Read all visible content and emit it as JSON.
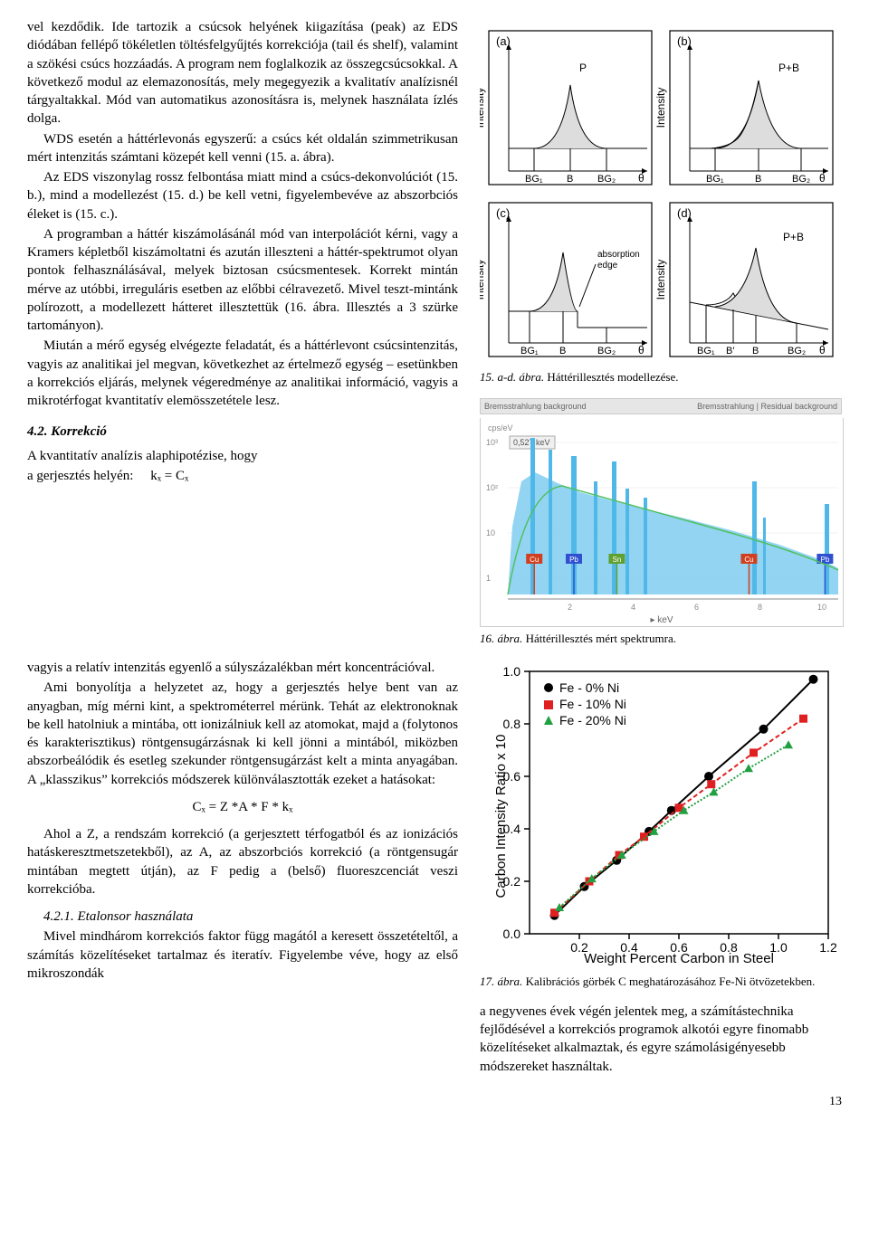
{
  "leftCol": {
    "para1": "vel kezdődik. Ide tartozik a csúcsok helyének kiigazítása (peak) az EDS diódában fellépő tökéletlen töltésfelgyűjtés korrekciója (tail és shelf), valamint a szökési csúcs hozzáadás. A program nem foglalkozik az összegcsúcsokkal. A következő modul az elemazonosítás, mely megegyezik a kvalitatív analízisnél tárgyaltakkal. Mód van automatikus azonosításra is, melynek használata ízlés dolga.",
    "para2": "WDS esetén a háttérlevonás egyszerű: a csúcs két oldalán szimmetrikusan mért intenzitás számtani közepét kell venni (15. a. ábra).",
    "para3": "Az EDS viszonylag rossz felbontása miatt mind a csúcs-dekonvolúciót (15. b.), mind a modellezést (15. d.) be kell vetni, figyelembevéve az abszorbciós éleket is (15. c.).",
    "para4": "A programban a háttér kiszámolásánál mód van interpolációt kérni, vagy a Kramers képletből kiszámoltatni és azután illeszteni a háttér-spektrumot olyan pontok felhasználásával, melyek biztosan csúcsmentesek. Korrekt mintán mérve az utóbbi, irreguláris esetben az előbbi célravezető. Mivel teszt-mintánk polírozott, a modellezett hátteret illesztettük (16. ábra. Illesztés a 3 szürke tartományon).",
    "para5": "Miután a mérő egység elvégezte feladatát, és a háttérlevont csúcsintenzitás, vagyis az analitikai jel megvan, következhet az értelmező egység – esetünkben a korrekciós eljárás, melynek végeredménye az analitikai információ, vagyis a mikrotérfogat kvantitatív elemösszetétele lesz.",
    "h4_2": "4.2. Korrekció",
    "para6": "A kvantitatív analízis alaphipotézise, hogy",
    "eq1_label": "a gerjesztés helyén:",
    "eq1": "kₓ = Cₓ",
    "para7": "vagyis a relatív intenzitás egyenlő a súlyszázalékban mért koncentrációval.",
    "para8": "Ami bonyolítja a helyzetet az, hogy a gerjesztés helye bent van az anyagban, míg mérni kint, a spektrométerrel mérünk. Tehát az elektronoknak be kell hatolniuk a mintába, ott ionizálniuk kell az atomokat, majd a (folytonos és karakterisztikus) röntgensugárzásnak ki kell jönni a mintából, miközben abszorbeálódik és esetleg szekunder röntgensugárzást kelt a minta anyagában. A „klasszikus” korrekciós módszerek különválasztották ezeket a hatásokat:",
    "eq2": "Cₓ = Z *A * F * kₓ",
    "para9": "Ahol a Z, a rendszám korrekció (a gerjesztett térfogatból és az ionizációs hatáskeresztmetszetekből), az A, az abszorbciós korrekció (a röntgensugár mintában megtett útján), az F pedig a (belső) fluoreszcenciát veszi korrekcióba.",
    "h5_1": "4.2.1. Etalonsor használata",
    "para10": "Mivel mindhárom korrekciós faktor függ magától a keresett összetételtől, a számítás közelítéseket tartalmaz és iteratív. Figyelembe véve, hogy az első mikroszondák"
  },
  "rightCol": {
    "cap15_label": "15. a-d. ábra.",
    "cap15_text": "Háttérillesztés modellezése.",
    "specHeaderLeft": "Bremsstrahlung background",
    "specHeaderRight": "Bremsstrahlung | Residual background",
    "specUnit": "cps/eV",
    "specPeak": "0,527 keV",
    "specXlabel": "keV",
    "cap16_label": "16. ábra.",
    "cap16_text": "Háttérillesztés mért spektrumra.",
    "chart17_ylabel": "Carbon Intensity Ratio x 10",
    "chart17_xlabel": "Weight Percent Carbon in Steel",
    "chart17_legend1": "Fe - 0% Ni",
    "chart17_legend2": "Fe - 10% Ni",
    "chart17_legend3": "Fe - 20% Ni",
    "cap17_label": "17. ábra.",
    "cap17_text": "Kalibrációs görbék C meghatározásához Fe-Ni ötvözetekben.",
    "para11": "a negyvenes évek végén jelentek meg, a számítástechnika fejlődésével a korrekciós programok alkotói egyre finomabb közelítéseket alkalmaztak, és egyre számolásigényesebb módszereket használtak."
  },
  "fig15": {
    "labels": {
      "a": "(a)",
      "b": "(b)",
      "c": "(c)",
      "d": "(d)",
      "xaxis": "θ",
      "yaxis": "Intensity",
      "BG1": "BG₁",
      "B": "B",
      "BG2": "BG₂",
      "Bp": "B'",
      "P": "P",
      "PB": "P+B",
      "absorption": "absorption\nedge"
    }
  },
  "fig16": {
    "yticks": [
      "10³",
      "10²",
      "10",
      "1"
    ],
    "xticks": [
      "2",
      "4",
      "6",
      "8",
      "10"
    ],
    "elements": [
      {
        "label": "Cu",
        "x": 0.08,
        "color": "#d04020"
      },
      {
        "label": "Pb",
        "x": 0.2,
        "color": "#3050d0"
      },
      {
        "label": "Sn",
        "x": 0.33,
        "color": "#60a030"
      },
      {
        "label": "Cu",
        "x": 0.73,
        "color": "#d04020"
      },
      {
        "label": "Pb",
        "x": 0.96,
        "color": "#3050d0"
      }
    ]
  },
  "fig17": {
    "xlim": [
      0,
      1.2
    ],
    "ylim": [
      0,
      1.0
    ],
    "xticks": [
      0.2,
      0.4,
      0.6,
      0.8,
      1.0,
      1.2
    ],
    "yticks": [
      0,
      0.2,
      0.4,
      0.6,
      0.8,
      1.0
    ],
    "series": [
      {
        "name": "Fe - 0% Ni",
        "color": "#000000",
        "marker": "circle",
        "dash": "",
        "pts": [
          [
            0.1,
            0.07
          ],
          [
            0.22,
            0.18
          ],
          [
            0.35,
            0.28
          ],
          [
            0.48,
            0.39
          ],
          [
            0.57,
            0.47
          ],
          [
            0.72,
            0.6
          ],
          [
            0.94,
            0.78
          ],
          [
            1.14,
            0.97
          ]
        ]
      },
      {
        "name": "Fe - 10% Ni",
        "color": "#e02020",
        "marker": "square",
        "dash": "5,3",
        "pts": [
          [
            0.1,
            0.08
          ],
          [
            0.24,
            0.2
          ],
          [
            0.36,
            0.3
          ],
          [
            0.46,
            0.37
          ],
          [
            0.6,
            0.48
          ],
          [
            0.73,
            0.57
          ],
          [
            0.9,
            0.69
          ],
          [
            1.1,
            0.82
          ]
        ]
      },
      {
        "name": "Fe - 20% Ni",
        "color": "#20a040",
        "marker": "triangle",
        "dash": "2,2",
        "pts": [
          [
            0.12,
            0.1
          ],
          [
            0.25,
            0.21
          ],
          [
            0.37,
            0.3
          ],
          [
            0.5,
            0.39
          ],
          [
            0.62,
            0.47
          ],
          [
            0.74,
            0.54
          ],
          [
            0.88,
            0.63
          ],
          [
            1.04,
            0.72
          ]
        ]
      }
    ]
  },
  "pagenum": "13"
}
